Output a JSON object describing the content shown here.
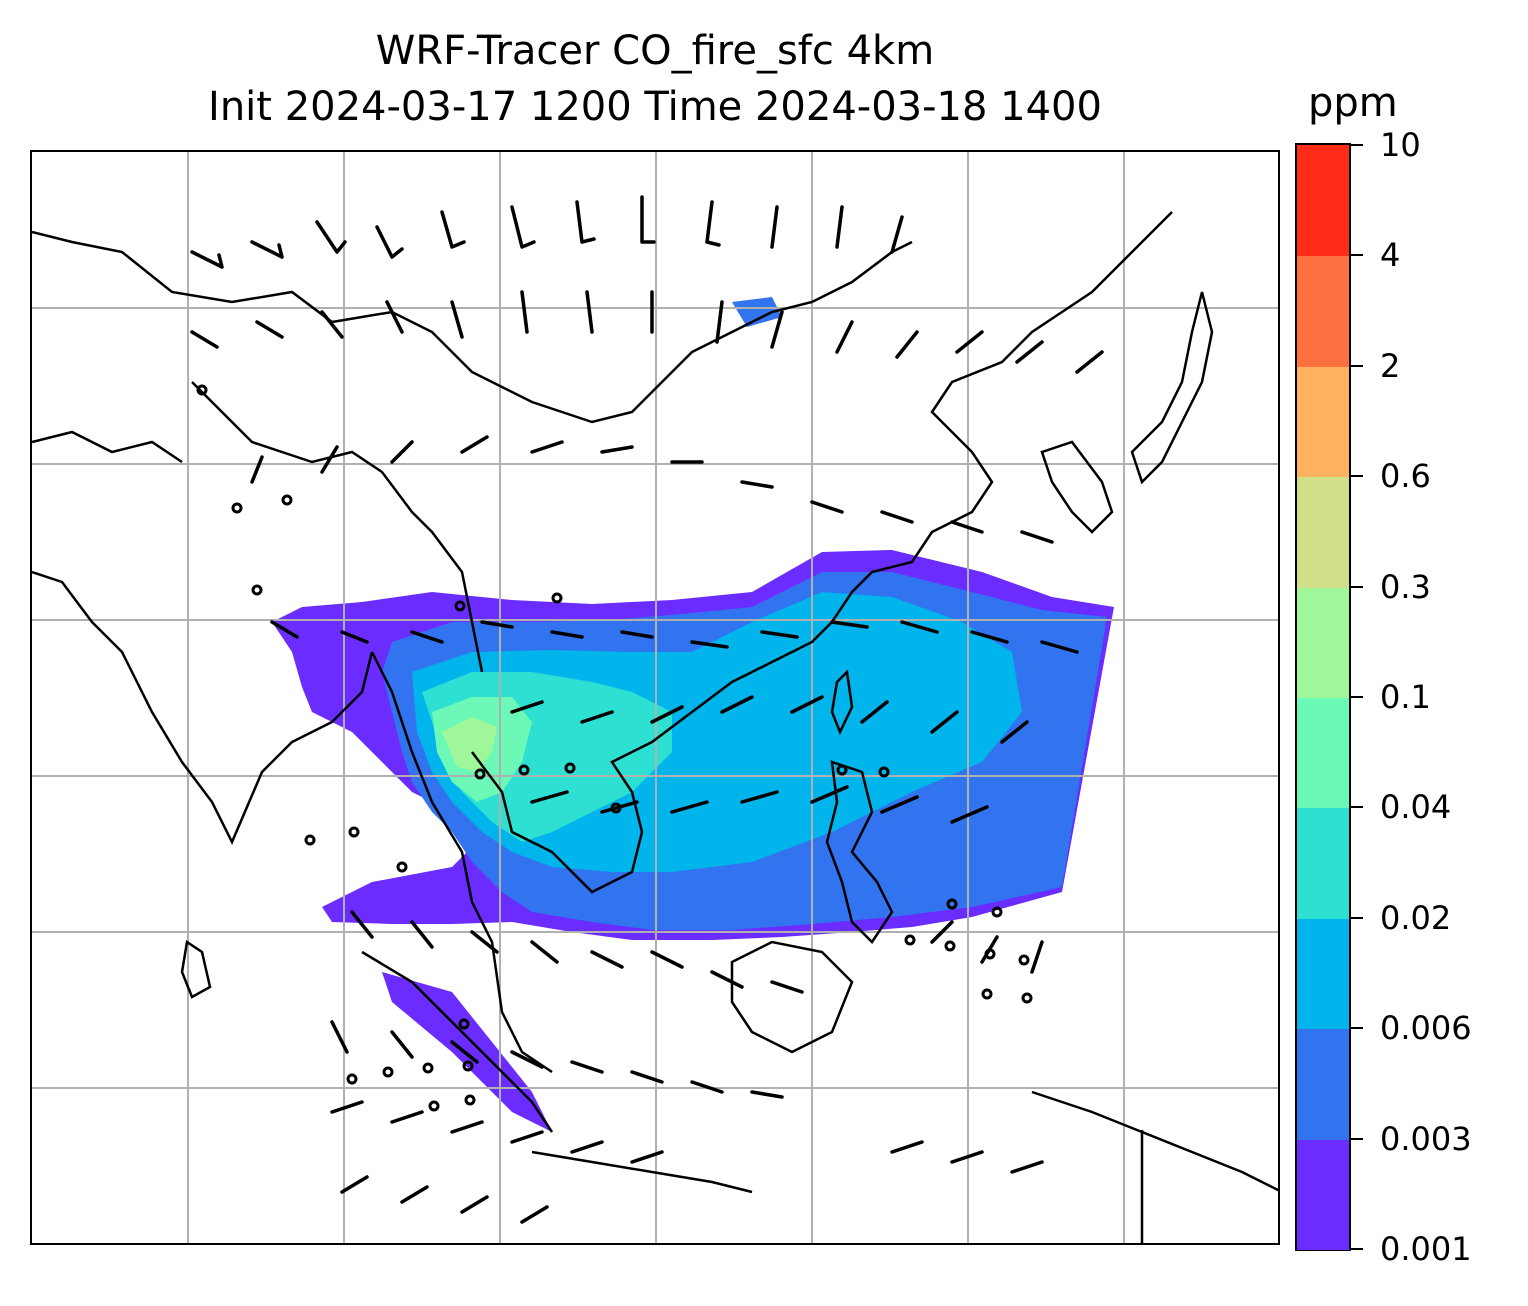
{
  "title": {
    "line1": "WRF-Tracer CO_fire_sfc 4km",
    "line2": "Init 2024-03-17 1200 Time 2024-03-18 1400"
  },
  "colorbar": {
    "units": "ppm",
    "levels": [
      "0.001",
      "0.003",
      "0.006",
      "0.02",
      "0.04",
      "0.1",
      "0.3",
      "0.6",
      "2",
      "4",
      "10"
    ],
    "colors": [
      "#6a2cff",
      "#3273f0",
      "#00b4ec",
      "#2ee0d2",
      "#6cf9b7",
      "#a0f79a",
      "#d1e088",
      "#ffb160",
      "#ff7040",
      "#ff2d18"
    ]
  },
  "map": {
    "region": "Asia-Pacific domain",
    "fields": [
      "CO_fire_sfc concentration (filled contours)",
      "surface wind barbs"
    ],
    "coastline_color": "#000000",
    "gridline_color": "#b0b0b0"
  }
}
